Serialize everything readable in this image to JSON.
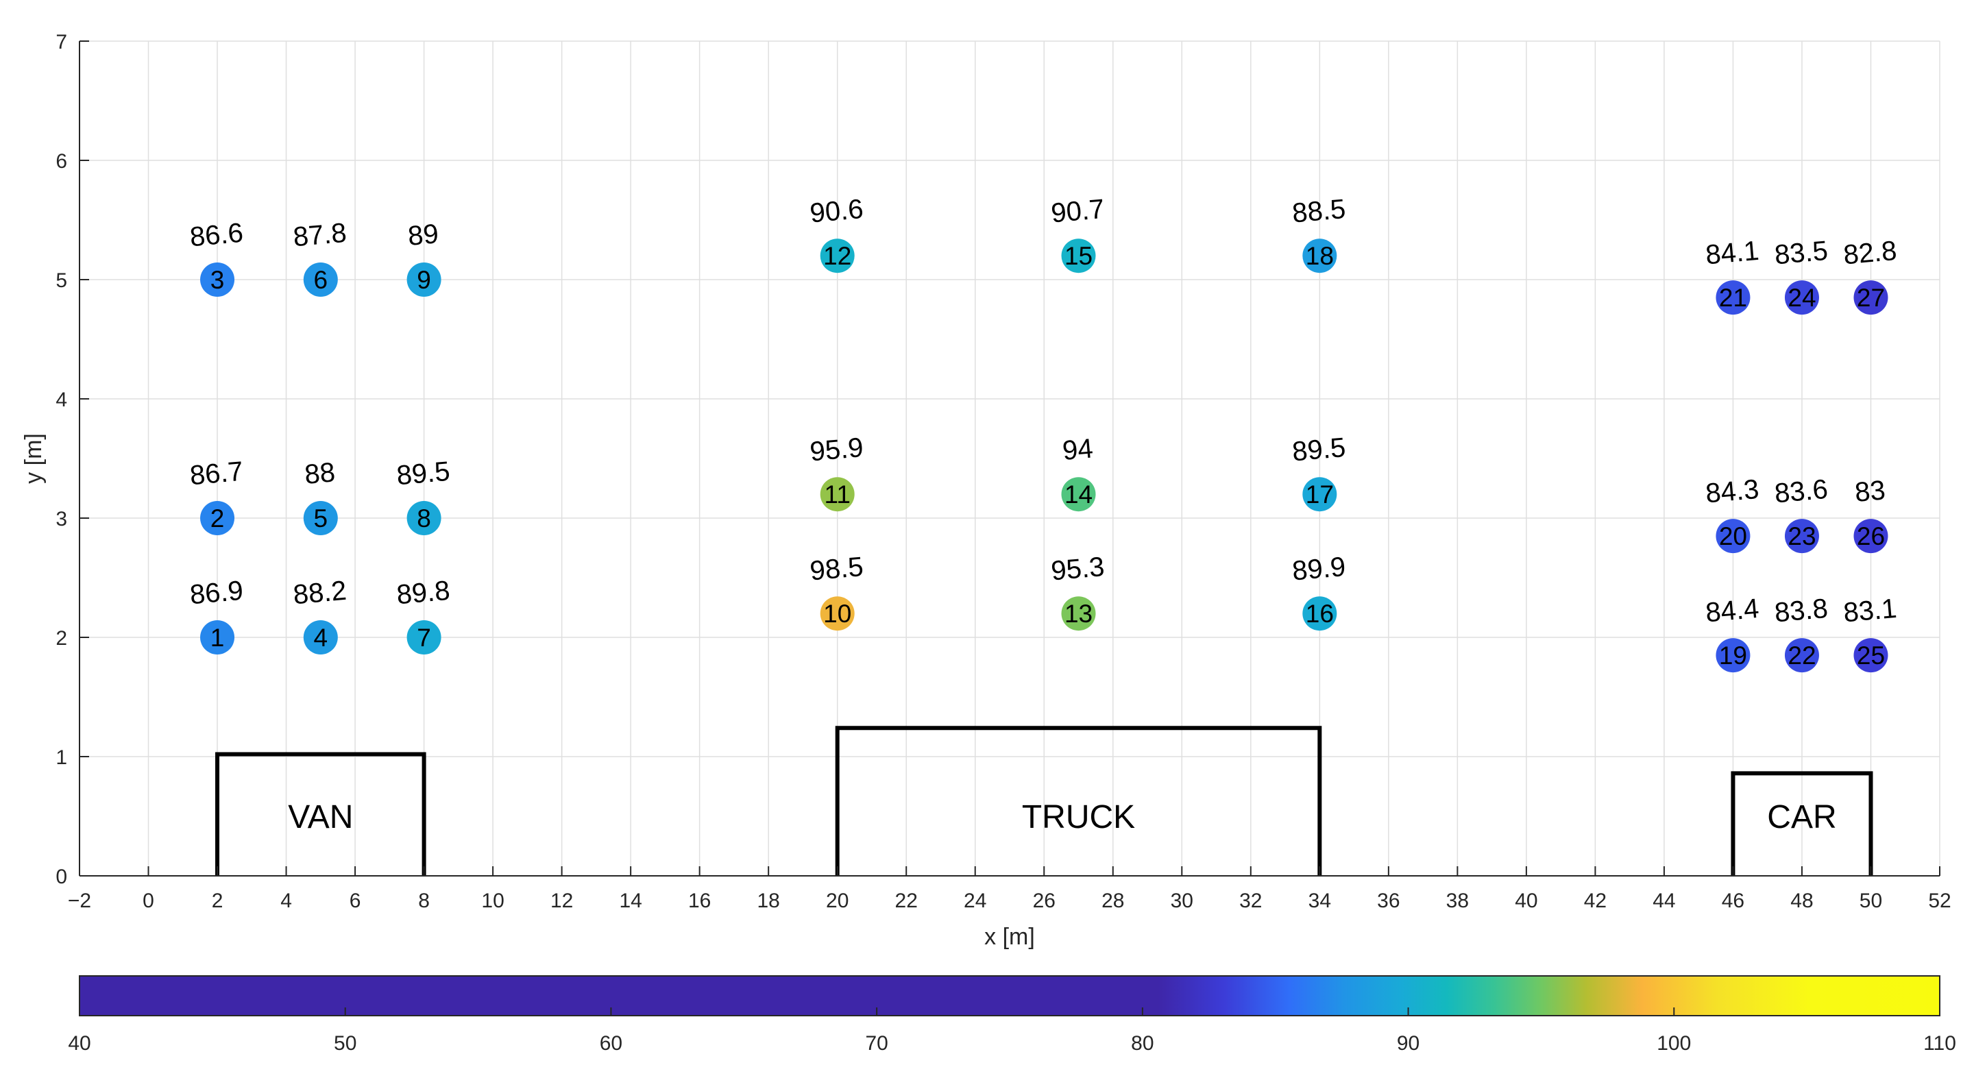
{
  "chart_data": {
    "type": "scatter",
    "title": "",
    "xlabel": "x [m]",
    "ylabel": "y [m]",
    "xlim": [
      -2,
      52
    ],
    "ylim": [
      0,
      7
    ],
    "x_ticks": [
      -2,
      0,
      2,
      4,
      6,
      8,
      10,
      12,
      14,
      16,
      18,
      20,
      22,
      24,
      26,
      28,
      30,
      32,
      34,
      36,
      38,
      40,
      42,
      44,
      46,
      48,
      50,
      52
    ],
    "y_ticks": [
      0,
      1,
      2,
      3,
      4,
      5,
      6,
      7
    ],
    "grid": true,
    "colorbar": {
      "location": "bottom",
      "range": [
        40,
        110
      ],
      "ticks": [
        40,
        50,
        60,
        70,
        80,
        90,
        100,
        110
      ]
    },
    "points": [
      {
        "id": 1,
        "x": 2,
        "y": 2.0,
        "value": 86.9
      },
      {
        "id": 2,
        "x": 2,
        "y": 3.0,
        "value": 86.7
      },
      {
        "id": 3,
        "x": 2,
        "y": 5.0,
        "value": 86.6
      },
      {
        "id": 4,
        "x": 5,
        "y": 2.0,
        "value": 88.2
      },
      {
        "id": 5,
        "x": 5,
        "y": 3.0,
        "value": 88
      },
      {
        "id": 6,
        "x": 5,
        "y": 5.0,
        "value": 87.8
      },
      {
        "id": 7,
        "x": 8,
        "y": 2.0,
        "value": 89.8
      },
      {
        "id": 8,
        "x": 8,
        "y": 3.0,
        "value": 89.5
      },
      {
        "id": 9,
        "x": 8,
        "y": 5.0,
        "value": 89
      },
      {
        "id": 10,
        "x": 20,
        "y": 2.2,
        "value": 98.5
      },
      {
        "id": 11,
        "x": 20,
        "y": 3.2,
        "value": 95.9
      },
      {
        "id": 12,
        "x": 20,
        "y": 5.2,
        "value": 90.6
      },
      {
        "id": 13,
        "x": 27,
        "y": 2.2,
        "value": 95.3
      },
      {
        "id": 14,
        "x": 27,
        "y": 3.2,
        "value": 94
      },
      {
        "id": 15,
        "x": 27,
        "y": 5.2,
        "value": 90.7
      },
      {
        "id": 16,
        "x": 34,
        "y": 2.2,
        "value": 89.9
      },
      {
        "id": 17,
        "x": 34,
        "y": 3.2,
        "value": 89.5
      },
      {
        "id": 18,
        "x": 34,
        "y": 5.2,
        "value": 88.5
      },
      {
        "id": 19,
        "x": 46,
        "y": 1.85,
        "value": 84.4
      },
      {
        "id": 20,
        "x": 46,
        "y": 2.85,
        "value": 84.3
      },
      {
        "id": 21,
        "x": 46,
        "y": 4.85,
        "value": 84.1
      },
      {
        "id": 22,
        "x": 48,
        "y": 1.85,
        "value": 83.8
      },
      {
        "id": 23,
        "x": 48,
        "y": 2.85,
        "value": 83.6
      },
      {
        "id": 24,
        "x": 48,
        "y": 4.85,
        "value": 83.5
      },
      {
        "id": 25,
        "x": 50,
        "y": 1.85,
        "value": 83.1
      },
      {
        "id": 26,
        "x": 50,
        "y": 2.85,
        "value": 83
      },
      {
        "id": 27,
        "x": 50,
        "y": 4.85,
        "value": 82.8
      }
    ],
    "vehicles": [
      {
        "label": "VAN",
        "x_start": 2,
        "x_end": 8,
        "height": 1.02
      },
      {
        "label": "TRUCK",
        "x_start": 20,
        "x_end": 34,
        "height": 1.24
      },
      {
        "label": "CAR",
        "x_start": 46,
        "x_end": 50,
        "height": 0.86
      }
    ]
  }
}
